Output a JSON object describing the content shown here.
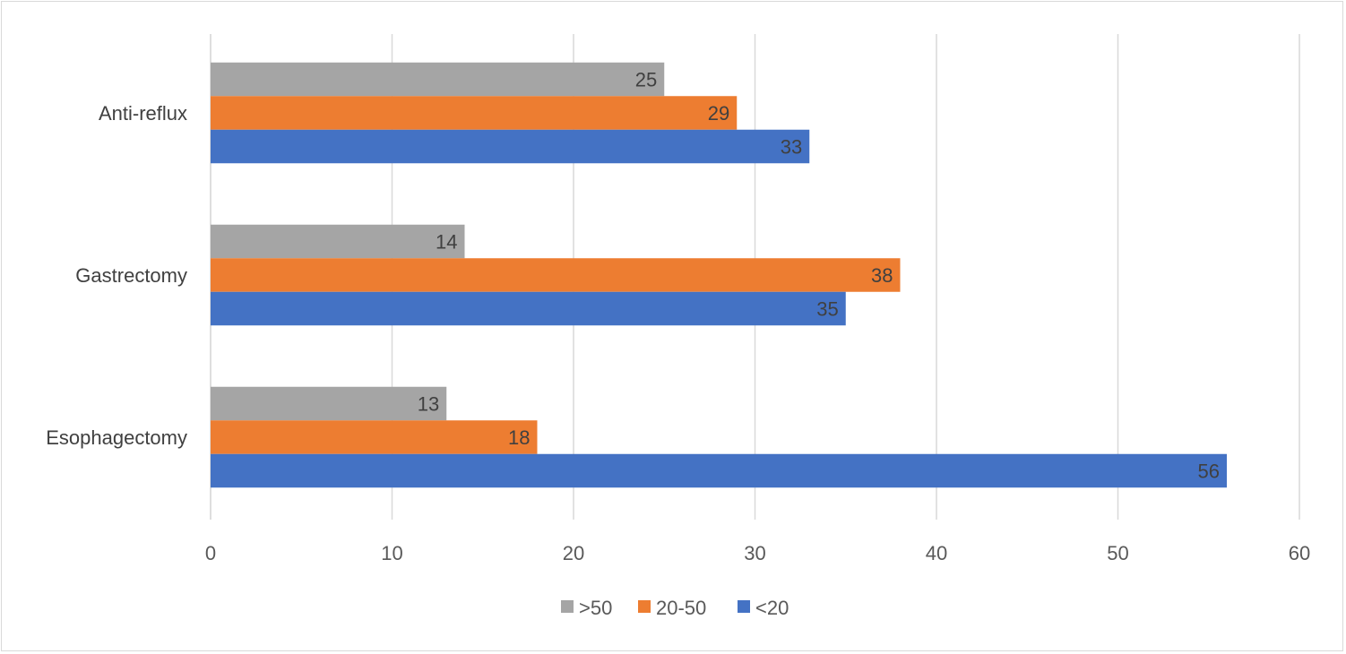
{
  "chart_data": {
    "type": "bar",
    "orientation": "horizontal",
    "categories": [
      "Anti-reflux",
      "Gastrectomy",
      "Esophagectomy"
    ],
    "series": [
      {
        "name": ">50",
        "color": "#a5a5a5",
        "values": [
          25,
          14,
          13
        ]
      },
      {
        "name": "20-50",
        "color": "#ed7d31",
        "values": [
          29,
          38,
          18
        ]
      },
      {
        "name": "<20",
        "color": "#4472c4",
        "values": [
          33,
          35,
          56
        ]
      }
    ],
    "xlim": [
      0,
      60
    ],
    "xticks": [
      0,
      10,
      20,
      30,
      40,
      50,
      60
    ],
    "grid": true,
    "data_labels": true,
    "legend_position": "bottom",
    "title": "",
    "xlabel": "",
    "ylabel": ""
  }
}
